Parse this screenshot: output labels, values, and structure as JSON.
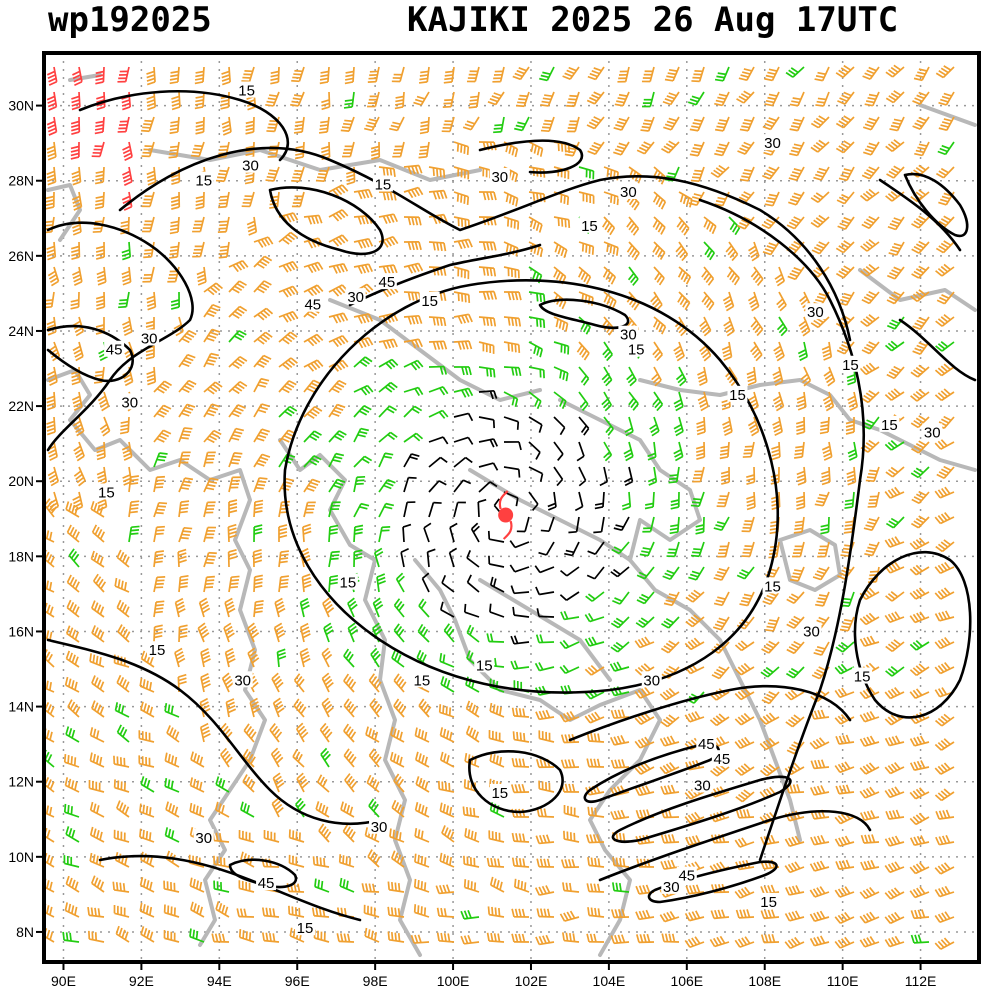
{
  "header": {
    "storm_id": "wp192025",
    "title": "KAJIKI 2025 26 Aug 17UTC"
  },
  "map": {
    "lon_range": [
      89.5,
      113.5
    ],
    "lat_range": [
      7.2,
      31.4
    ],
    "lon_ticks": [
      "90E",
      "92E",
      "94E",
      "96E",
      "98E",
      "100E",
      "102E",
      "104E",
      "106E",
      "108E",
      "110E",
      "112E"
    ],
    "lat_ticks": [
      "8N",
      "10N",
      "12N",
      "14N",
      "16N",
      "18N",
      "20N",
      "22N",
      "24N",
      "26N",
      "28N",
      "30N"
    ],
    "grid": true,
    "storm_center": {
      "lon": 101.35,
      "lat": 19.1
    },
    "colors": {
      "barb_light": "#000000",
      "barb_moderate": "#22cc11",
      "barb_strong": "#f0a030",
      "barb_gale": "#ff4040",
      "contour": "#000000",
      "coastline": "#b8b8b8",
      "grid": "#999999",
      "storm_marker": "#ff4040"
    },
    "contour_labels": [
      {
        "text": "15",
        "lon": 93.6,
        "lat": 28.0
      },
      {
        "text": "15",
        "lon": 94.7,
        "lat": 30.4
      },
      {
        "text": "30",
        "lon": 94.8,
        "lat": 28.4
      },
      {
        "text": "15",
        "lon": 98.2,
        "lat": 27.9
      },
      {
        "text": "30",
        "lon": 101.2,
        "lat": 28.1
      },
      {
        "text": "30",
        "lon": 104.5,
        "lat": 27.7
      },
      {
        "text": "15",
        "lon": 103.5,
        "lat": 26.8
      },
      {
        "text": "30",
        "lon": 108.2,
        "lat": 29.0
      },
      {
        "text": "45",
        "lon": 98.3,
        "lat": 25.3
      },
      {
        "text": "30",
        "lon": 97.5,
        "lat": 24.9
      },
      {
        "text": "45",
        "lon": 96.4,
        "lat": 24.7
      },
      {
        "text": "15",
        "lon": 99.4,
        "lat": 24.8
      },
      {
        "text": "30",
        "lon": 92.2,
        "lat": 23.8
      },
      {
        "text": "45",
        "lon": 91.3,
        "lat": 23.5
      },
      {
        "text": "30",
        "lon": 109.3,
        "lat": 24.5
      },
      {
        "text": "30",
        "lon": 104.5,
        "lat": 23.9
      },
      {
        "text": "15",
        "lon": 104.7,
        "lat": 23.5
      },
      {
        "text": "15",
        "lon": 110.2,
        "lat": 23.1
      },
      {
        "text": "15",
        "lon": 107.3,
        "lat": 22.3
      },
      {
        "text": "30",
        "lon": 91.7,
        "lat": 22.1
      },
      {
        "text": "15",
        "lon": 111.2,
        "lat": 21.5
      },
      {
        "text": "30",
        "lon": 112.3,
        "lat": 21.3
      },
      {
        "text": "15",
        "lon": 91.1,
        "lat": 19.7
      },
      {
        "text": "15",
        "lon": 97.3,
        "lat": 17.3
      },
      {
        "text": "15",
        "lon": 108.2,
        "lat": 17.2
      },
      {
        "text": "30",
        "lon": 109.2,
        "lat": 16.0
      },
      {
        "text": "15",
        "lon": 92.4,
        "lat": 15.5
      },
      {
        "text": "15",
        "lon": 100.8,
        "lat": 15.1
      },
      {
        "text": "15",
        "lon": 99.2,
        "lat": 14.7
      },
      {
        "text": "30",
        "lon": 94.6,
        "lat": 14.7
      },
      {
        "text": "30",
        "lon": 105.1,
        "lat": 14.7
      },
      {
        "text": "15",
        "lon": 110.5,
        "lat": 14.8
      },
      {
        "text": "45",
        "lon": 106.5,
        "lat": 13.0
      },
      {
        "text": "45",
        "lon": 106.9,
        "lat": 12.6
      },
      {
        "text": "30",
        "lon": 106.4,
        "lat": 11.9
      },
      {
        "text": "15",
        "lon": 101.2,
        "lat": 11.7
      },
      {
        "text": "30",
        "lon": 98.1,
        "lat": 10.8
      },
      {
        "text": "30",
        "lon": 93.6,
        "lat": 10.5
      },
      {
        "text": "45",
        "lon": 95.2,
        "lat": 9.3
      },
      {
        "text": "45",
        "lon": 106.0,
        "lat": 9.5
      },
      {
        "text": "30",
        "lon": 105.6,
        "lat": 9.2
      },
      {
        "text": "15",
        "lon": 108.1,
        "lat": 8.8
      },
      {
        "text": "15",
        "lon": 96.2,
        "lat": 8.1
      }
    ]
  }
}
